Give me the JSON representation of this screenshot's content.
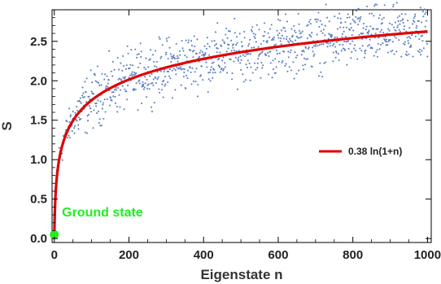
{
  "chart_data": {
    "type": "scatter",
    "xlabel": "Eigenstate n",
    "ylabel": "S",
    "xlim": [
      -6,
      1010
    ],
    "ylim": [
      -0.05,
      2.9
    ],
    "xticks": [
      0,
      200,
      400,
      600,
      800,
      1000
    ],
    "yticks": [
      0.0,
      0.5,
      1.0,
      1.5,
      2.0,
      2.5
    ],
    "ytick_labels": [
      "0.0",
      "0.5",
      "1.0",
      "1.5",
      "2.0",
      "2.5"
    ],
    "grid": false,
    "series": [
      {
        "kind": "scatter",
        "description_values": "~1000 eigenstates scattered around the fit curve, spread ±0.45",
        "n_points": 1000,
        "color": "#5b7fc0"
      },
      {
        "name": "0.38 ln(1+n)",
        "kind": "line",
        "coefficient": 0.38,
        "function": "ln(1+n)",
        "color": "#e00000"
      },
      {
        "kind": "point",
        "x": 0,
        "y": 0.05,
        "color": "#22ee22"
      }
    ],
    "legend": {
      "position": "right",
      "label": "0.38 ln(1+n)"
    },
    "annotations": [
      {
        "text": "Ground state",
        "x": 3,
        "y": 0.3,
        "color": "#22ee22"
      }
    ],
    "colors": {
      "scatter": "#5b7fc0",
      "fit_line": "#e00000",
      "ground_state": "#22ee22"
    }
  }
}
